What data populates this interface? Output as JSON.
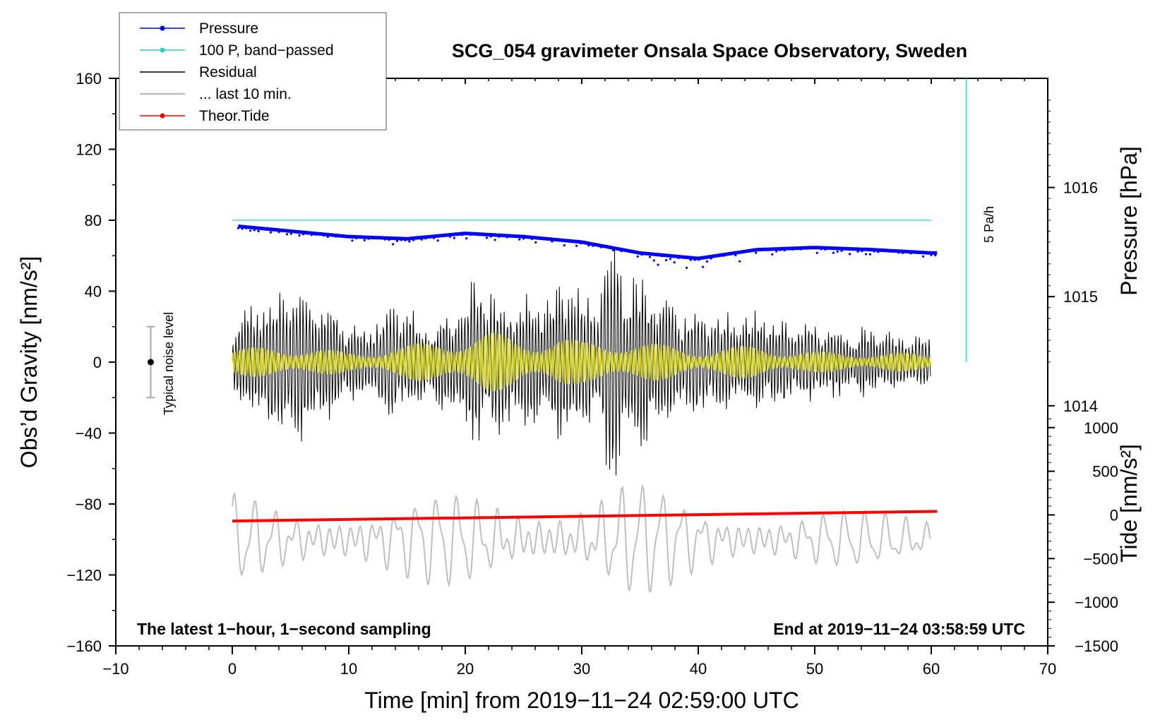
{
  "chart_data": {
    "type": "line",
    "title": "SCG_054 gravimeter Onsala Space Observatory, Sweden",
    "xlabel": "Time [min] from 2019−11−24 02:59:00 UTC",
    "ylabel_left": "Obs’d Gravity [nm/s²]",
    "ylabel_right_top": "Pressure [hPa]",
    "ylabel_right_bottom": "Tide [nm/s²]",
    "xlim": [
      -10,
      70
    ],
    "ylim": [
      -160,
      160
    ],
    "pressure_axis_range": [
      1011.8,
      1017
    ],
    "tide_axis_range": [
      -1500,
      5000
    ],
    "x_ticks": [
      "−10",
      "0",
      "10",
      "20",
      "30",
      "40",
      "50",
      "60",
      "70"
    ],
    "x_tick_values": [
      -10,
      0,
      10,
      20,
      30,
      40,
      50,
      60,
      70
    ],
    "y_ticks_left": [
      "160",
      "120",
      "80",
      "40",
      "0",
      "−40",
      "−80",
      "−120",
      "−160"
    ],
    "y_tick_values_left": [
      160,
      120,
      80,
      40,
      0,
      -40,
      -80,
      -120,
      -160
    ],
    "pressure_ticks": [
      "1016",
      "1015",
      "1014"
    ],
    "pressure_tick_values": [
      1016,
      1015,
      1014
    ],
    "tide_ticks": [
      "1000",
      "500",
      "0",
      "−500",
      "−1000",
      "−1500"
    ],
    "tide_tick_values": [
      1000,
      500,
      0,
      -500,
      -1000,
      -1500
    ],
    "legend": [
      {
        "label": "Pressure",
        "color": "#0000ff",
        "style": "line-dot"
      },
      {
        "label": "100 P, band−passed",
        "color": "#33cccc",
        "style": "line-dot"
      },
      {
        "label": "Residual",
        "color": "#000000",
        "style": "line"
      },
      {
        "label": "... last 10 min.",
        "color": "#bfbfbf",
        "style": "line"
      },
      {
        "label": "Theor.Tide",
        "color": "#ff0000",
        "style": "line-dot"
      }
    ],
    "series": [
      {
        "name": "Pressure",
        "unit": "hPa",
        "color": "#0000ff",
        "x": [
          0,
          5,
          10,
          15,
          20,
          25,
          30,
          35,
          40,
          45,
          50,
          55,
          60
        ],
        "values": [
          1015.65,
          1015.6,
          1015.55,
          1015.53,
          1015.58,
          1015.55,
          1015.5,
          1015.4,
          1015.35,
          1015.43,
          1015.45,
          1015.43,
          1015.4
        ]
      },
      {
        "name": "100 P, band-passed",
        "unit": "nm/s²",
        "color": "#33cccc",
        "x": [
          0,
          60
        ],
        "values": [
          80,
          80
        ]
      },
      {
        "name": "Theor.Tide",
        "unit": "nm/s²",
        "color": "#ff0000",
        "x": [
          0,
          60.5
        ],
        "values": [
          -70,
          40
        ]
      },
      {
        "name": "Residual",
        "unit": "nm/s²",
        "color": "#000000",
        "x": [
          0,
          2,
          5,
          8,
          11,
          14,
          17,
          20,
          21,
          23,
          26,
          28,
          29,
          31,
          32,
          32.5,
          33,
          34,
          35,
          38,
          42,
          45,
          48,
          52,
          56,
          60
        ],
        "amplitude": [
          22,
          40,
          52,
          40,
          22,
          38,
          26,
          40,
          60,
          45,
          40,
          50,
          62,
          35,
          68,
          72,
          70,
          58,
          55,
          38,
          30,
          35,
          28,
          22,
          20,
          15
        ]
      },
      {
        "name": "Residual (band-passed)",
        "unit": "nm/s²",
        "color": "#d9d926",
        "x": [
          0,
          5,
          10,
          15,
          20,
          22,
          25,
          28,
          30,
          33,
          35,
          40,
          45,
          50,
          55,
          60
        ],
        "amplitude": [
          8,
          10,
          6,
          10,
          16,
          18,
          14,
          16,
          12,
          14,
          12,
          8,
          10,
          6,
          6,
          5
        ]
      },
      {
        "name": "... last 10 min.",
        "unit": "nm/s²",
        "color": "#bfbfbf",
        "x": [
          0,
          5,
          10,
          15,
          20,
          25,
          30,
          34,
          40,
          45,
          50,
          55,
          60
        ],
        "center": [
          -100,
          -100,
          -100,
          -100,
          -100,
          -100,
          -100,
          -100,
          -100,
          -100,
          -100,
          -100,
          -100
        ],
        "amplitude": [
          20,
          18,
          20,
          20,
          22,
          22,
          22,
          28,
          18,
          18,
          15,
          12,
          14
        ]
      }
    ],
    "annotations": {
      "pressure_rate_label": "5 Pa/h",
      "pressure_rate_x": 63,
      "pressure_rate_y_range": [
        0,
        160
      ],
      "noise_label": "Typical noise level",
      "noise_x": -7,
      "noise_y_range": [
        -20,
        20
      ],
      "bottom_left": "The latest 1−hour, 1−second sampling",
      "bottom_right": "End at 2019−11−24 03:58:59 UTC"
    }
  }
}
